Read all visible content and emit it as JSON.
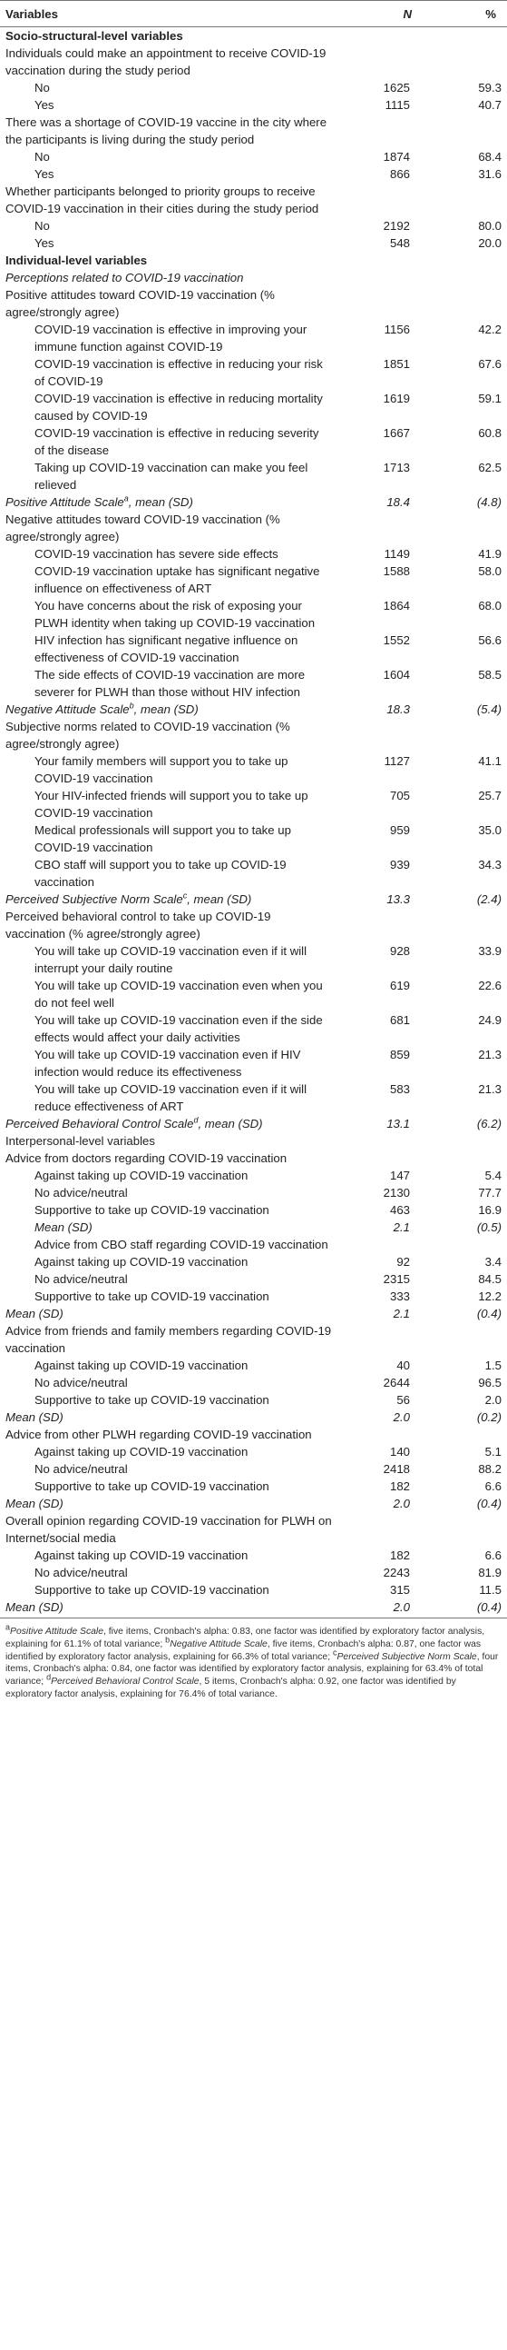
{
  "header": {
    "variables": "Variables",
    "n": "N",
    "pct": "%"
  },
  "rows": [
    {
      "k": "h",
      "l": "Socio-structural-level variables"
    },
    {
      "k": "q",
      "l": "Individuals could make an appointment to receive COVID-19 vaccination during the study period"
    },
    {
      "k": "r",
      "l": "No",
      "n": "1625",
      "p": "59.3"
    },
    {
      "k": "r",
      "l": "Yes",
      "n": "1115",
      "p": "40.7"
    },
    {
      "k": "q",
      "l": "There was a shortage of COVID-19 vaccine in the city where the participants is living during the study period"
    },
    {
      "k": "r",
      "l": "No",
      "n": "1874",
      "p": "68.4"
    },
    {
      "k": "r",
      "l": "Yes",
      "n": "866",
      "p": "31.6"
    },
    {
      "k": "q",
      "l": "Whether participants belonged to priority groups to receive COVID-19 vaccination in their cities during the study period"
    },
    {
      "k": "r",
      "l": "No",
      "n": "2192",
      "p": "80.0"
    },
    {
      "k": "r",
      "l": "Yes",
      "n": "548",
      "p": "20.0"
    },
    {
      "k": "h",
      "l": "Individual-level variables"
    },
    {
      "k": "i",
      "l": "Perceptions related to COVID-19 vaccination"
    },
    {
      "k": "q",
      "l": "Positive attitudes toward COVID-19 vaccination (% agree/strongly agree)"
    },
    {
      "k": "r",
      "l": "COVID-19 vaccination is effective in improving your immune function against COVID-19",
      "n": "1156",
      "p": "42.2"
    },
    {
      "k": "r",
      "l": "COVID-19 vaccination is effective in reducing your risk of COVID-19",
      "n": "1851",
      "p": "67.6"
    },
    {
      "k": "r",
      "l": "COVID-19 vaccination is effective in reducing mortality caused by COVID-19",
      "n": "1619",
      "p": "59.1"
    },
    {
      "k": "r",
      "l": "COVID-19 vaccination is effective in reducing severity of the disease",
      "n": "1667",
      "p": "60.8"
    },
    {
      "k": "r",
      "l": "Taking up COVID-19 vaccination can make you feel relieved",
      "n": "1713",
      "p": "62.5"
    },
    {
      "k": "iv",
      "l": "Positive Attitude Scale",
      "sup": "a",
      "tail": ", mean (SD)",
      "n": "18.4",
      "p": "(4.8)"
    },
    {
      "k": "q",
      "l": "Negative attitudes toward COVID-19 vaccination (% agree/strongly agree)"
    },
    {
      "k": "r",
      "l": "COVID-19 vaccination has severe side effects",
      "n": "1149",
      "p": "41.9"
    },
    {
      "k": "r",
      "l": "COVID-19 vaccination uptake has significant negative influence on effectiveness of ART",
      "n": "1588",
      "p": "58.0"
    },
    {
      "k": "r",
      "l": "You have concerns about the risk of exposing your PLWH identity when taking up COVID-19 vaccination",
      "n": "1864",
      "p": "68.0"
    },
    {
      "k": "r",
      "l": "HIV infection has significant negative influence on effectiveness of COVID-19 vaccination",
      "n": "1552",
      "p": "56.6"
    },
    {
      "k": "r",
      "l": "The side effects of COVID-19 vaccination are more severer for PLWH than those without HIV infection",
      "n": "1604",
      "p": "58.5"
    },
    {
      "k": "iv",
      "l": "Negative Attitude Scale",
      "sup": "b",
      "tail": ", mean (SD)",
      "n": "18.3",
      "p": "(5.4)"
    },
    {
      "k": "q",
      "l": "Subjective norms related to COVID-19 vaccination (% agree/strongly agree)"
    },
    {
      "k": "r",
      "l": "Your family members will support you to take up COVID-19 vaccination",
      "n": "1127",
      "p": "41.1"
    },
    {
      "k": "r",
      "l": "Your HIV-infected friends will support you to take up COVID-19 vaccination",
      "n": "705",
      "p": "25.7"
    },
    {
      "k": "r",
      "l": "Medical professionals will support you to take up COVID-19 vaccination",
      "n": "959",
      "p": "35.0"
    },
    {
      "k": "r",
      "l": "CBO staff will support you to take up COVID-19 vaccination",
      "n": "939",
      "p": "34.3"
    },
    {
      "k": "iv",
      "l": "Perceived Subjective Norm Scale",
      "sup": "c",
      "tail": ", mean (SD)",
      "n": "13.3",
      "p": "(2.4)"
    },
    {
      "k": "q",
      "l": "Perceived behavioral control to take up COVID-19 vaccination (% agree/strongly agree)"
    },
    {
      "k": "r",
      "l": "You will take up COVID-19 vaccination even if it will interrupt your daily routine",
      "n": "928",
      "p": "33.9"
    },
    {
      "k": "r",
      "l": "You will take up COVID-19 vaccination even when you do not feel well",
      "n": "619",
      "p": "22.6"
    },
    {
      "k": "r",
      "l": "You will take up COVID-19 vaccination even if the side effects would affect your daily activities",
      "n": "681",
      "p": "24.9"
    },
    {
      "k": "r",
      "l": "You will take up COVID-19 vaccination even if HIV infection would reduce its effectiveness",
      "n": "859",
      "p": "21.3"
    },
    {
      "k": "r",
      "l": "You will take up COVID-19 vaccination even if it will reduce effectiveness of ART",
      "n": "583",
      "p": "21.3"
    },
    {
      "k": "iv",
      "l": "Perceived Behavioral Control Scale",
      "sup": "d",
      "tail": ", mean (SD)",
      "n": "13.1",
      "p": "(6.2)"
    },
    {
      "k": "q",
      "l": "Interpersonal-level variables"
    },
    {
      "k": "q",
      "l": "Advice from doctors regarding COVID-19 vaccination"
    },
    {
      "k": "r",
      "l": "Against taking up COVID-19 vaccination",
      "n": "147",
      "p": "5.4"
    },
    {
      "k": "r",
      "l": "No advice/neutral",
      "n": "2130",
      "p": "77.7"
    },
    {
      "k": "r",
      "l": "Supportive to take up COVID-19 vaccination",
      "n": "463",
      "p": "16.9"
    },
    {
      "k": "ri",
      "l": "Mean (SD)",
      "n": "2.1",
      "p": "(0.5)"
    },
    {
      "k": "r",
      "l": "Advice from CBO staff regarding COVID-19 vaccination"
    },
    {
      "k": "r",
      "l": "Against taking up COVID-19 vaccination",
      "n": "92",
      "p": "3.4"
    },
    {
      "k": "r",
      "l": "No advice/neutral",
      "n": "2315",
      "p": "84.5"
    },
    {
      "k": "r",
      "l": "Supportive to take up COVID-19 vaccination",
      "n": "333",
      "p": "12.2"
    },
    {
      "k": "iv",
      "l": "Mean (SD)",
      "n": "2.1",
      "p": "(0.4)"
    },
    {
      "k": "q",
      "l": "Advice from friends and family members regarding COVID-19 vaccination"
    },
    {
      "k": "r",
      "l": "Against taking up COVID-19 vaccination",
      "n": "40",
      "p": "1.5"
    },
    {
      "k": "r",
      "l": "No advice/neutral",
      "n": "2644",
      "p": "96.5"
    },
    {
      "k": "r",
      "l": "Supportive to take up COVID-19 vaccination",
      "n": "56",
      "p": "2.0"
    },
    {
      "k": "iv",
      "l": "Mean (SD)",
      "n": "2.0",
      "p": "(0.2)"
    },
    {
      "k": "q",
      "l": "Advice from other PLWH regarding COVID-19 vaccination"
    },
    {
      "k": "r",
      "l": "Against taking up COVID-19 vaccination",
      "n": "140",
      "p": "5.1"
    },
    {
      "k": "r",
      "l": "No advice/neutral",
      "n": "2418",
      "p": "88.2"
    },
    {
      "k": "r",
      "l": "Supportive to take up COVID-19 vaccination",
      "n": "182",
      "p": "6.6"
    },
    {
      "k": "iv",
      "l": "Mean (SD)",
      "n": "2.0",
      "p": "(0.4)"
    },
    {
      "k": "q",
      "l": "Overall opinion regarding COVID-19 vaccination for PLWH on Internet/social media"
    },
    {
      "k": "r",
      "l": "Against taking up COVID-19 vaccination",
      "n": "182",
      "p": "6.6"
    },
    {
      "k": "r",
      "l": "No advice/neutral",
      "n": "2243",
      "p": "81.9"
    },
    {
      "k": "r",
      "l": "Supportive to take up COVID-19 vaccination",
      "n": "315",
      "p": "11.5"
    },
    {
      "k": "iv",
      "l": "Mean (SD)",
      "n": "2.0",
      "p": "(0.4)",
      "last": true
    }
  ],
  "footnotes": [
    {
      "mark": "a",
      "term": "Positive Attitude Scale",
      "text": ", five items, Cronbach's alpha: 0.83, one factor was identified by exploratory factor analysis, explaining for 61.1% of total variance; "
    },
    {
      "mark": "b",
      "term": "Negative Attitude Scale",
      "text": ", five items, Cronbach's alpha: 0.87, one factor was identified by exploratory factor analysis, explaining for 66.3% of total variance; "
    },
    {
      "mark": "c",
      "term": "Perceived Subjective Norm Scale",
      "text": ", four items, Cronbach's alpha: 0.84, one factor was identified by exploratory factor analysis, explaining for 63.4% of total variance; "
    },
    {
      "mark": "d",
      "term": "Perceived Behavioral Control Scale",
      "text": ", 5 items, Cronbach's alpha: 0.92, one factor was identified by exploratory factor analysis, explaining for 76.4% of total variance."
    }
  ]
}
